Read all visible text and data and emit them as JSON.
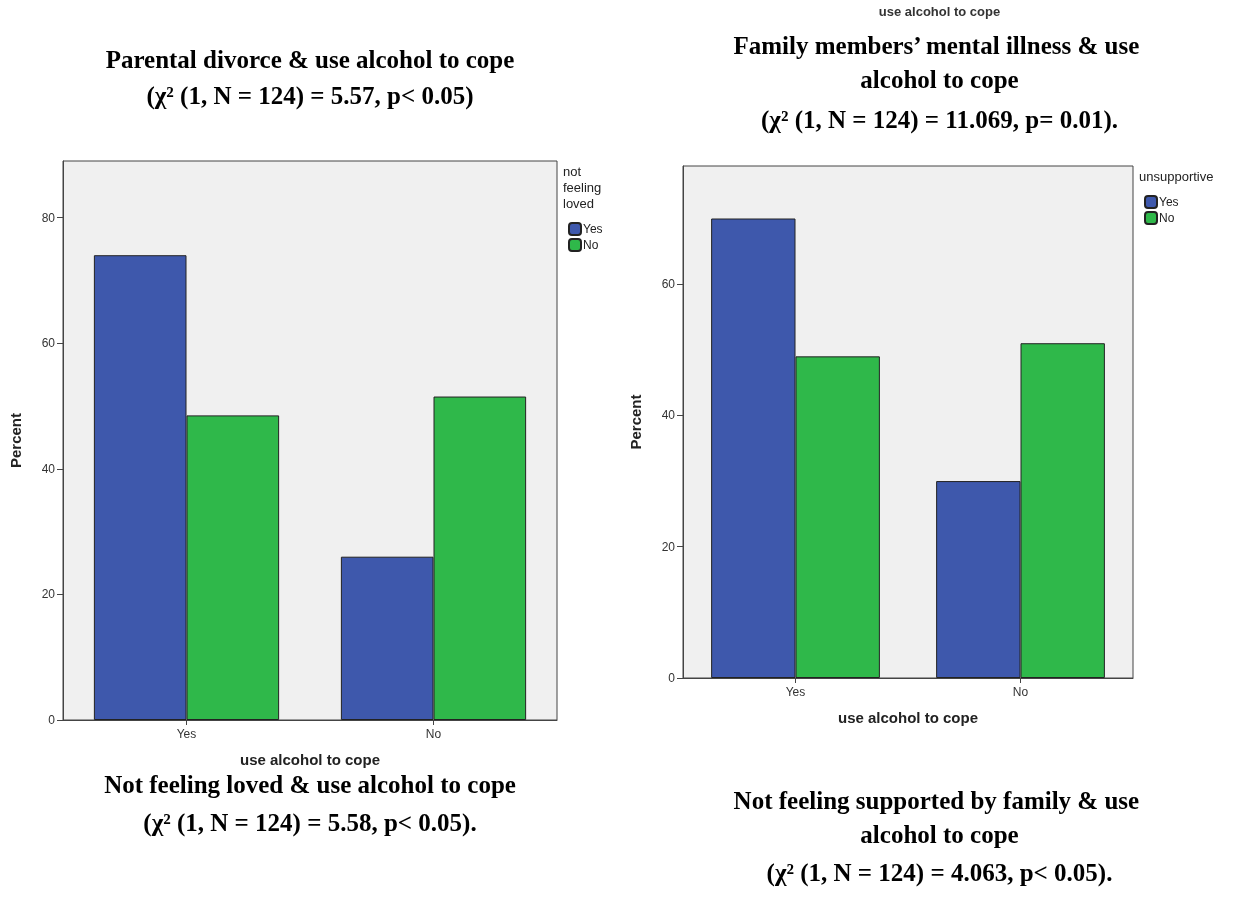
{
  "chart_data": [
    {
      "type": "bar",
      "title": "Not feeling loved & use alcohol to cope",
      "subtitle": "(χ² (1, N = 124) = 5.58, p< 0.05).",
      "xlabel": "use alcohol to cope",
      "ylabel": "Percent",
      "legend_title": "not feeling loved",
      "categories": [
        "Yes",
        "No"
      ],
      "series": [
        {
          "name": "Yes",
          "color": "#3e58ac",
          "values": [
            74,
            26
          ]
        },
        {
          "name": "No",
          "color": "#2fb84a",
          "values": [
            48.5,
            51.5
          ]
        }
      ],
      "ylim": [
        0,
        89
      ],
      "yticks": [
        0,
        20,
        40,
        60,
        80
      ],
      "grid": false,
      "legend": "top right",
      "annotations": [
        "Parental divorce & use alcohol to cope",
        "(χ² (1, N = 124) = 5.57, p< 0.05)"
      ]
    },
    {
      "type": "bar",
      "title": "Not feeling supported by family & use alcohol to cope",
      "subtitle": "(χ² (1, N = 124) = 4.063, p< 0.05).",
      "xlabel": "use alcohol to cope",
      "ylabel": "Percent",
      "legend_title": "unsupportive",
      "categories": [
        "Yes",
        "No"
      ],
      "series": [
        {
          "name": "Yes",
          "color": "#3e58ac",
          "values": [
            70,
            30
          ]
        },
        {
          "name": "No",
          "color": "#2fb84a",
          "values": [
            49,
            51
          ]
        }
      ],
      "ylim": [
        0,
        78
      ],
      "yticks": [
        0,
        20,
        40,
        60
      ],
      "grid": false,
      "legend": "top right",
      "annotations": [
        "use alcohol to cope",
        "Family members’ mental illness & use alcohol to cope",
        "(χ² (1, N = 124) = 11.069, p= 0.01)."
      ]
    }
  ]
}
